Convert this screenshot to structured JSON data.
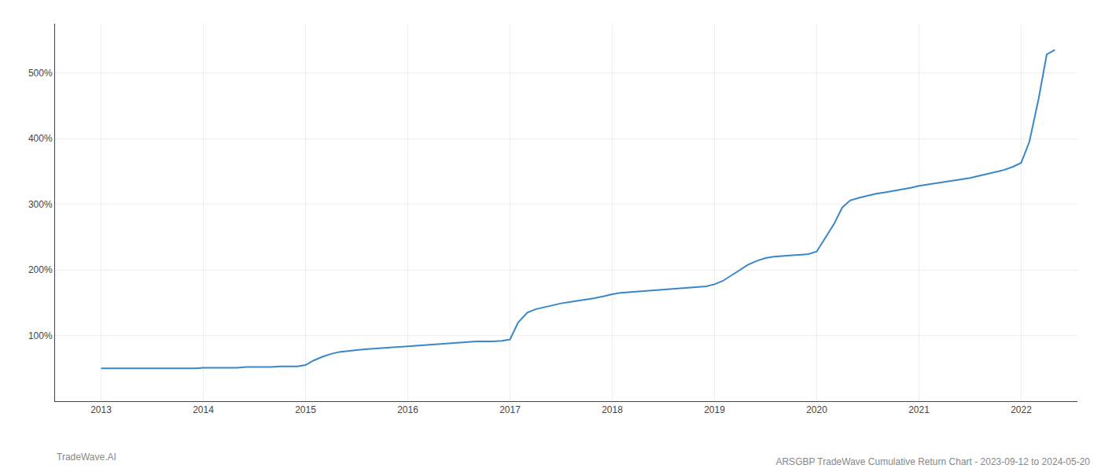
{
  "chart_data": {
    "type": "line",
    "title": "ARSGBP TradeWave Cumulative Return Chart - 2023-09-12 to 2024-05-20",
    "annotations": [
      "TradeWave.AI"
    ],
    "color": "#3a87c8",
    "grid": true,
    "xlim": [
      2012.55,
      2022.55
    ],
    "ylim": [
      0,
      575
    ],
    "xticks": [
      2013,
      2014,
      2015,
      2016,
      2017,
      2018,
      2019,
      2020,
      2021,
      2022
    ],
    "yticks": [
      {
        "value": 100,
        "label": "100%"
      },
      {
        "value": 200,
        "label": "200%"
      },
      {
        "value": 300,
        "label": "300%"
      },
      {
        "value": 400,
        "label": "400%"
      },
      {
        "value": 500,
        "label": "500%"
      }
    ],
    "x": [
      2013.0,
      2013.08,
      2013.17,
      2013.25,
      2013.33,
      2013.42,
      2013.5,
      2013.58,
      2013.67,
      2013.75,
      2013.83,
      2013.92,
      2014.0,
      2014.08,
      2014.17,
      2014.25,
      2014.33,
      2014.42,
      2014.5,
      2014.58,
      2014.67,
      2014.75,
      2014.83,
      2014.92,
      2015.0,
      2015.08,
      2015.17,
      2015.25,
      2015.33,
      2015.42,
      2015.5,
      2015.58,
      2015.67,
      2015.75,
      2015.83,
      2015.92,
      2016.0,
      2016.08,
      2016.17,
      2016.25,
      2016.33,
      2016.42,
      2016.5,
      2016.58,
      2016.67,
      2016.75,
      2016.83,
      2016.92,
      2017.0,
      2017.08,
      2017.17,
      2017.25,
      2017.33,
      2017.42,
      2017.5,
      2017.58,
      2017.67,
      2017.75,
      2017.83,
      2017.92,
      2018.0,
      2018.08,
      2018.17,
      2018.25,
      2018.33,
      2018.42,
      2018.5,
      2018.58,
      2018.67,
      2018.75,
      2018.83,
      2018.92,
      2019.0,
      2019.08,
      2019.17,
      2019.25,
      2019.33,
      2019.42,
      2019.5,
      2019.58,
      2019.67,
      2019.75,
      2019.83,
      2019.92,
      2020.0,
      2020.08,
      2020.17,
      2020.25,
      2020.33,
      2020.42,
      2020.5,
      2020.58,
      2020.67,
      2020.75,
      2020.83,
      2020.92,
      2021.0,
      2021.08,
      2021.17,
      2021.25,
      2021.33,
      2021.42,
      2021.5,
      2021.58,
      2021.67,
      2021.75,
      2021.83,
      2021.92,
      2022.0,
      2022.08,
      2022.17,
      2022.25,
      2022.33
    ],
    "values": [
      50,
      50,
      50,
      50,
      50,
      50,
      50,
      50,
      50,
      50,
      50,
      50,
      51,
      51,
      51,
      51,
      51,
      52,
      52,
      52,
      52,
      53,
      53,
      53,
      55,
      62,
      68,
      72,
      75,
      77,
      78,
      79,
      80,
      81,
      82,
      83,
      84,
      85,
      86,
      87,
      88,
      89,
      90,
      90,
      91,
      91,
      91,
      92,
      94,
      120,
      135,
      140,
      143,
      146,
      149,
      151,
      153,
      155,
      157,
      160,
      163,
      165,
      166,
      167,
      168,
      169,
      170,
      171,
      172,
      173,
      174,
      175,
      178,
      183,
      192,
      200,
      208,
      214,
      218,
      220,
      221,
      222,
      223,
      224,
      228,
      248,
      270,
      295,
      306,
      310,
      313,
      316,
      318,
      320,
      322,
      325,
      328,
      330,
      332,
      334,
      336,
      338,
      340,
      343,
      346,
      349,
      352,
      357,
      363,
      395,
      460,
      528,
      535
    ]
  }
}
